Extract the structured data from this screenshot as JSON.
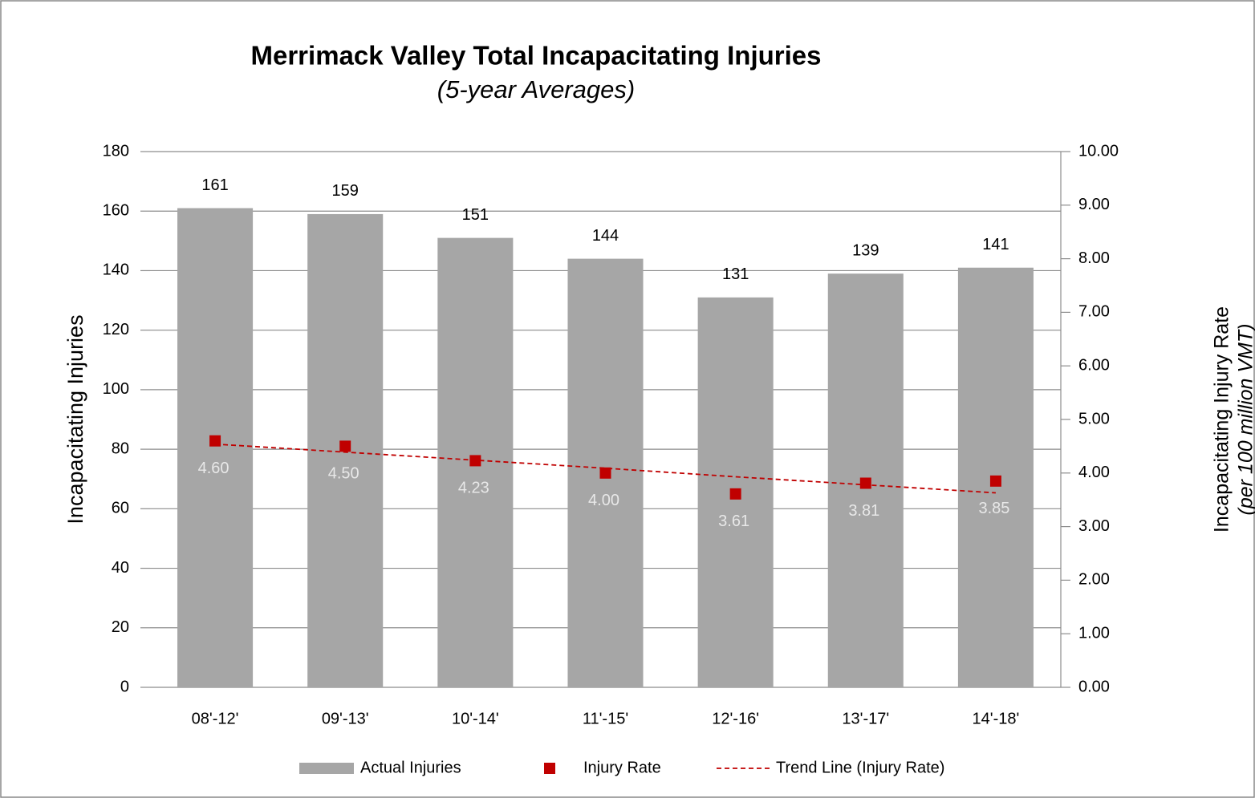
{
  "chart_data": {
    "type": "bar",
    "title": "Merrimack Valley Total Incapacitating Injuries",
    "subtitle": "(5-year Averages)",
    "ylabel": "Incapacitating Injuries",
    "y2label": [
      "Incapacitating Injury Rate",
      "(per 100 million VMT)"
    ],
    "categories": [
      "08'-12'",
      "09'-13'",
      "10'-14'",
      "11'-15'",
      "12'-16'",
      "13'-17'",
      "14'-18'"
    ],
    "series": [
      {
        "name": "Actual Injuries",
        "type": "bar",
        "color": "#a6a6a6",
        "values": [
          161,
          159,
          151,
          144,
          131,
          139,
          141
        ]
      },
      {
        "name": "Injury Rate",
        "type": "scatter",
        "axis": "y2",
        "color": "#c00000",
        "values": [
          4.6,
          4.5,
          4.23,
          4.0,
          3.61,
          3.81,
          3.85
        ],
        "value_labels": [
          "4.60",
          "4.50",
          "4.23",
          "4.00",
          "3.61",
          "3.81",
          "3.85"
        ]
      },
      {
        "name": "Trend Line (Injury Rate)",
        "type": "line",
        "axis": "y2",
        "color": "#c00000",
        "dashed": true,
        "values": [
          4.54,
          4.39,
          4.24,
          4.09,
          3.93,
          3.78,
          3.63
        ]
      }
    ],
    "ylim": [
      0,
      180
    ],
    "yticks": [
      0,
      20,
      40,
      60,
      80,
      100,
      120,
      140,
      160,
      180
    ],
    "y2lim": [
      0,
      10
    ],
    "y2ticks": [
      {
        "value": 0,
        "label": "0.00"
      },
      {
        "value": 1,
        "label": "1.00"
      },
      {
        "value": 2,
        "label": "2.00"
      },
      {
        "value": 3,
        "label": "3.00"
      },
      {
        "value": 4,
        "label": "4.00"
      },
      {
        "value": 5,
        "label": "5.00"
      },
      {
        "value": 6,
        "label": "6.00"
      },
      {
        "value": 7,
        "label": "7.00"
      },
      {
        "value": 8,
        "label": "8.00"
      },
      {
        "value": 9,
        "label": "9.00"
      },
      {
        "value": 10,
        "label": "10.00"
      }
    ],
    "grid": true,
    "legend": "bottom"
  }
}
